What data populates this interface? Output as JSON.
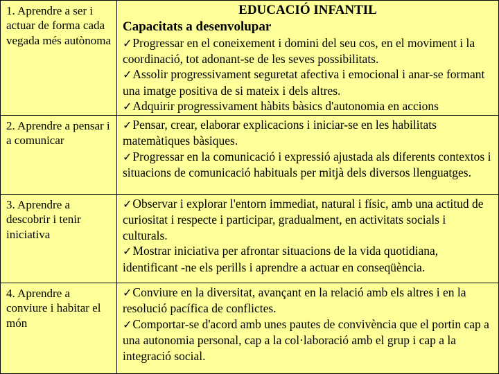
{
  "colors": {
    "cell_bg": "#feff99",
    "border": "#000000",
    "text": "#000000"
  },
  "header": {
    "title": "EDUCACIÓ INFANTIL",
    "subtitle": "Capacitats a desenvolupar"
  },
  "rows": [
    {
      "left": "1. Aprendre a ser i actuar de forma cada vegada més autònoma",
      "bullets": [
        "Progressar en el coneixement i domini del seu cos, en el moviment i la coordinació, tot adonant-se de les seves possibilitats.",
        "Assolir progressivament seguretat afectiva i emocional i anar-se formant una imatge positiva de si mateix i dels altres.",
        "Adquirir progressivament hàbits bàsics d'autonomia en accions quotidianes amb seguretat i eficàcia."
      ]
    },
    {
      "left": "2. Aprendre a pensar i a comunicar",
      "bullets": [
        "Pensar, crear, elaborar explicacions i iniciar-se en les habilitats matemàtiques bàsiques.",
        "Progressar en la comunicació i expressió ajustada als diferents contextos i situacions de comunicació habituals per mitjà dels diversos llenguatges."
      ]
    },
    {
      "left": "3. Aprendre a descobrir i tenir iniciativa",
      "bullets": [
        "Observar i explorar l'entorn immediat, natural i físic, amb una actitud de curiositat i respecte i participar, gradualment, en activitats socials i culturals.",
        "Mostrar iniciativa per afrontar situacions de la vida quotidiana, identificant -ne els perills i aprendre a actuar en conseqüència."
      ]
    },
    {
      "left": "4. Aprendre a conviure i habitar el món",
      "bullets": [
        "Conviure en la diversitat, avançant en la relació amb els altres i en la resolució pacífica de conflictes.",
        "Comportar-se d'acord amb unes pautes de convivència que el portin cap a una autonomia personal, cap a la col·laboració amb el grup i cap a la integració social."
      ]
    }
  ]
}
